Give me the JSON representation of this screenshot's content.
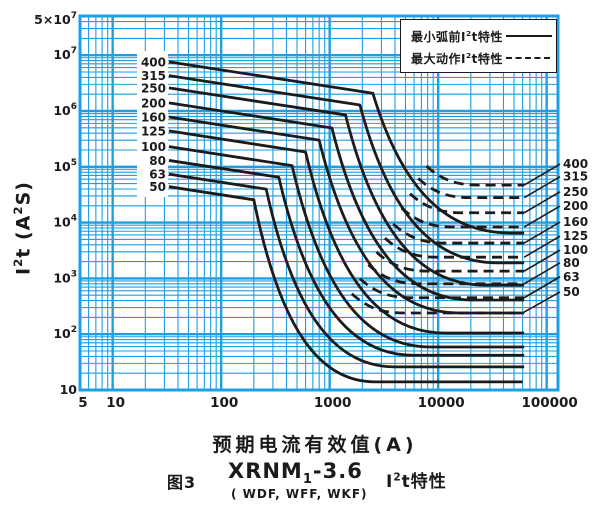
{
  "figure": {
    "colors": {
      "grid": "#1e9ee4",
      "curve": "#1b1b1b",
      "background": "#ffffff",
      "text": "#1a1a1a"
    },
    "legend": {
      "items": [
        {
          "pre": "最小弧前I",
          "sup": "2",
          "post": "t特性",
          "style": "solid"
        },
        {
          "pre": "最大动作I",
          "sup": "2",
          "post": "t特性",
          "style": "dashed"
        }
      ]
    },
    "y_axis": {
      "title_pre": "I",
      "title_sup1": "2",
      "title_mid": "t (A",
      "title_sup2": "2",
      "title_post": "S)",
      "ticks": [
        {
          "base": "5×10",
          "exp": "7",
          "value": 50000000
        },
        {
          "base": "10",
          "exp": "7",
          "value": 10000000
        },
        {
          "base": "10",
          "exp": "6",
          "value": 1000000
        },
        {
          "base": "10",
          "exp": "5",
          "value": 100000
        },
        {
          "base": "10",
          "exp": "4",
          "value": 10000
        },
        {
          "base": "10",
          "exp": "3",
          "value": 1000
        },
        {
          "base": "10",
          "exp": "2",
          "value": 100
        },
        {
          "base": "10",
          "exp": "",
          "value": 10
        }
      ]
    },
    "x_axis": {
      "title": "预期电流有效值(A)",
      "ticks": [
        {
          "label": "5",
          "value": 5
        },
        {
          "label": "10",
          "value": 10
        },
        {
          "label": "100",
          "value": 100
        },
        {
          "label": "1000",
          "value": 1000
        },
        {
          "label": "10000",
          "value": 10000
        },
        {
          "label": "100000",
          "value": 100000
        }
      ]
    },
    "caption": {
      "fig_no": "图3",
      "model_base": "XRNM",
      "model_sub": "1",
      "model_rest": "-3.6",
      "variants": "( WDF, WFF, WKF)",
      "char_pre": "I",
      "char_sup": "2",
      "char_post": "t特性"
    }
  },
  "chart_data": {
    "type": "line",
    "x_scale": "log",
    "y_scale": "log",
    "xlabel": "预期电流有效值(A)",
    "ylabel": "I2t (A2S)",
    "x_range": [
      5,
      127000
    ],
    "y_range": [
      10,
      50000000
    ],
    "grid": "log-minor-and-major",
    "legend_position": "top-right",
    "series": [
      {
        "rating": "400",
        "min_prearc": [
          [
            33,
            7600000
          ],
          [
            2500,
            2080000
          ],
          [
            47000,
            6500
          ],
          [
            62000,
            6500
          ]
        ],
        "max_operating": [
          [
            7800,
            103000
          ],
          [
            23400,
            47000
          ],
          [
            62000,
            47000
          ]
        ]
      },
      {
        "rating": "315",
        "min_prearc": [
          [
            33,
            4300000
          ],
          [
            1900,
            1280000
          ],
          [
            35500,
            1900
          ],
          [
            62000,
            1900
          ]
        ],
        "max_operating": [
          [
            6550,
            62000
          ],
          [
            19600,
            28000
          ],
          [
            62000,
            28000
          ]
        ]
      },
      {
        "rating": "250",
        "min_prearc": [
          [
            33,
            2600000
          ],
          [
            1400,
            850000
          ],
          [
            27000,
            760
          ],
          [
            62000,
            760
          ]
        ],
        "max_operating": [
          [
            5500,
            33000
          ],
          [
            16500,
            15000
          ],
          [
            62000,
            15000
          ]
        ]
      },
      {
        "rating": "200",
        "min_prearc": [
          [
            33,
            1400000
          ],
          [
            1050,
            496000
          ],
          [
            20600,
            410
          ],
          [
            62000,
            410
          ]
        ],
        "max_operating": [
          [
            4600,
            18300
          ],
          [
            13800,
            8300
          ],
          [
            62000,
            8300
          ]
        ]
      },
      {
        "rating": "160",
        "min_prearc": [
          [
            33,
            780000
          ],
          [
            800,
            300000
          ],
          [
            15600,
            240
          ],
          [
            62000,
            240
          ]
        ],
        "max_operating": [
          [
            3850,
            9460
          ],
          [
            11600,
            4300
          ],
          [
            62000,
            4300
          ]
        ]
      },
      {
        "rating": "125",
        "min_prearc": [
          [
            33,
            440000
          ],
          [
            600,
            184000
          ],
          [
            11500,
            105
          ],
          [
            62000,
            105
          ]
        ],
        "max_operating": [
          [
            3230,
            5280
          ],
          [
            9700,
            2400
          ],
          [
            62000,
            2400
          ]
        ]
      },
      {
        "rating": "100",
        "min_prearc": [
          [
            33,
            230000
          ],
          [
            450,
            105000
          ],
          [
            8400,
            59
          ],
          [
            62000,
            59
          ]
        ],
        "max_operating": [
          [
            2700,
            2970
          ],
          [
            8100,
            1350
          ],
          [
            62000,
            1350
          ]
        ]
      },
      {
        "rating": "80",
        "min_prearc": [
          [
            33,
            130000
          ],
          [
            340,
            65000
          ],
          [
            5900,
            42
          ],
          [
            62000,
            42
          ]
        ],
        "max_operating": [
          [
            2270,
            1760
          ],
          [
            6800,
            800
          ],
          [
            62000,
            800
          ]
        ]
      },
      {
        "rating": "63",
        "min_prearc": [
          [
            33,
            74000
          ],
          [
            260,
            39800
          ],
          [
            3950,
            26
          ],
          [
            62000,
            26
          ]
        ],
        "max_operating": [
          [
            1900,
            990
          ],
          [
            5700,
            450
          ],
          [
            62000,
            450
          ]
        ]
      },
      {
        "rating": "50",
        "min_prearc": [
          [
            33,
            44000
          ],
          [
            200,
            25600
          ],
          [
            2600,
            14
          ],
          [
            60000,
            14
          ]
        ],
        "max_operating": [
          [
            1600,
            530
          ],
          [
            4800,
            240
          ],
          [
            60000,
            240
          ]
        ]
      }
    ]
  }
}
